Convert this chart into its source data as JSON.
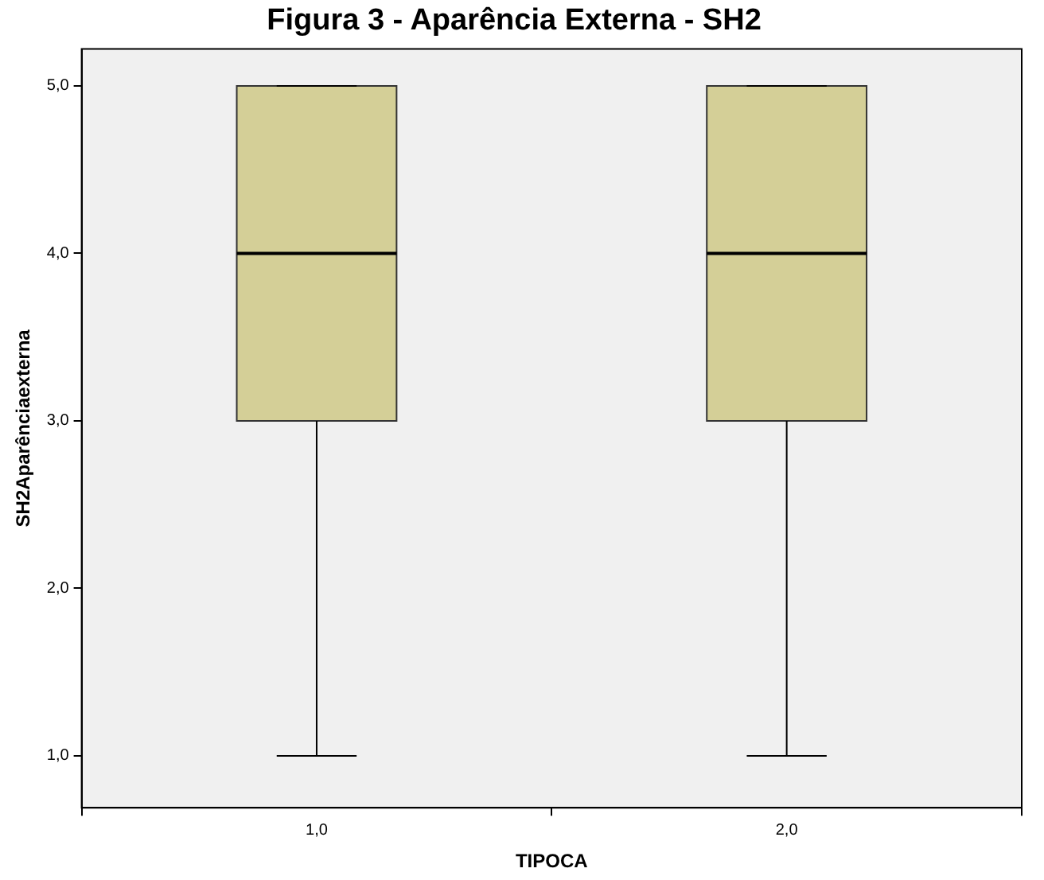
{
  "chart_data": {
    "type": "box",
    "title": "Figura 3 - Aparência Externa - SH2",
    "xlabel": "TIPOCA",
    "ylabel": "SH2Aparênciaexterna",
    "categories": [
      "1,0",
      "2,0"
    ],
    "boxes": [
      {
        "low": 1,
        "q1": 3,
        "median": 4,
        "q3": 5,
        "high": 5
      },
      {
        "low": 1,
        "q1": 3,
        "median": 4,
        "q3": 5,
        "high": 5
      }
    ],
    "color": "#d4cf97",
    "ylim": [
      0.69,
      5.22
    ],
    "yticks": [
      {
        "value": 1,
        "label": "1,0"
      },
      {
        "value": 2,
        "label": "2,0"
      },
      {
        "value": 3,
        "label": "3,0"
      },
      {
        "value": 4,
        "label": "4,0"
      },
      {
        "value": 5,
        "label": "5,0"
      }
    ],
    "grid": false,
    "legend": false
  }
}
